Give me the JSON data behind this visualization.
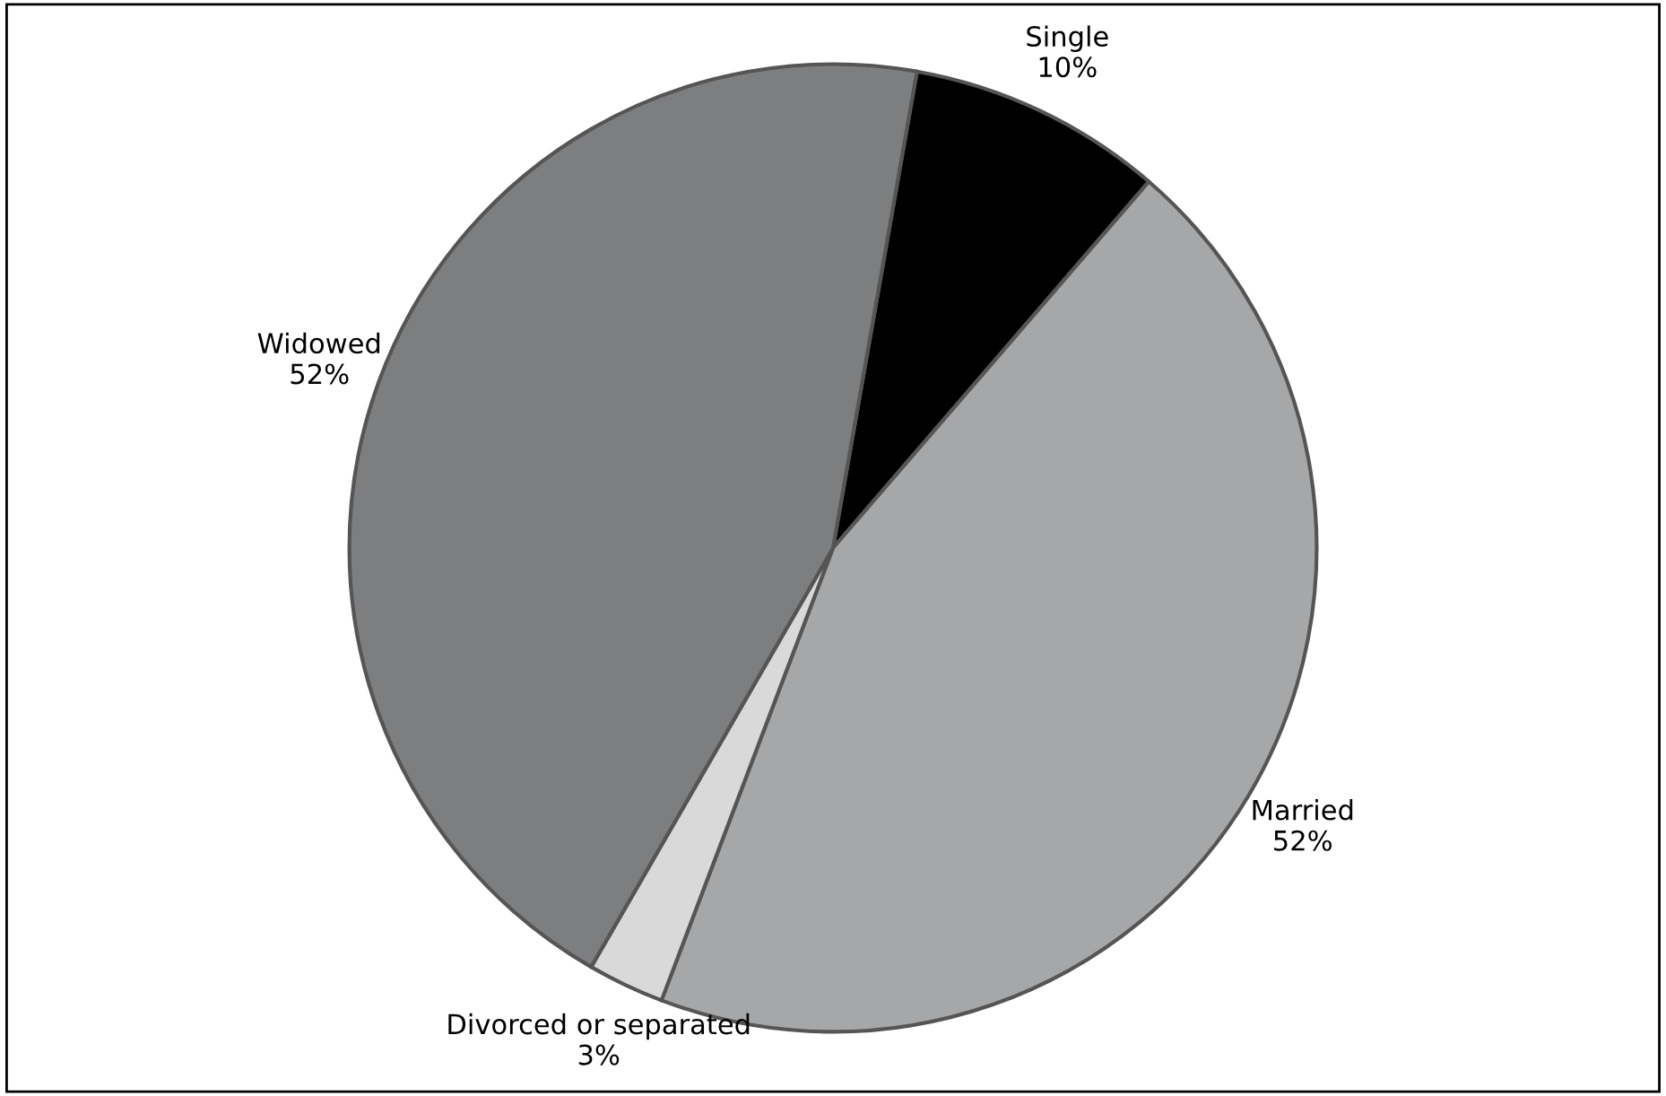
{
  "chart_data": {
    "type": "pie",
    "categories": [
      "Single",
      "Married",
      "Divorced or separated",
      "Widowed"
    ],
    "values": [
      10,
      52,
      3,
      52
    ],
    "value_labels": [
      "10%",
      "52%",
      "3%",
      "52%"
    ],
    "colors": [
      "#000000",
      "#a6a7a9",
      "#d9d9d9",
      "#7d7e80"
    ],
    "legend": false
  }
}
